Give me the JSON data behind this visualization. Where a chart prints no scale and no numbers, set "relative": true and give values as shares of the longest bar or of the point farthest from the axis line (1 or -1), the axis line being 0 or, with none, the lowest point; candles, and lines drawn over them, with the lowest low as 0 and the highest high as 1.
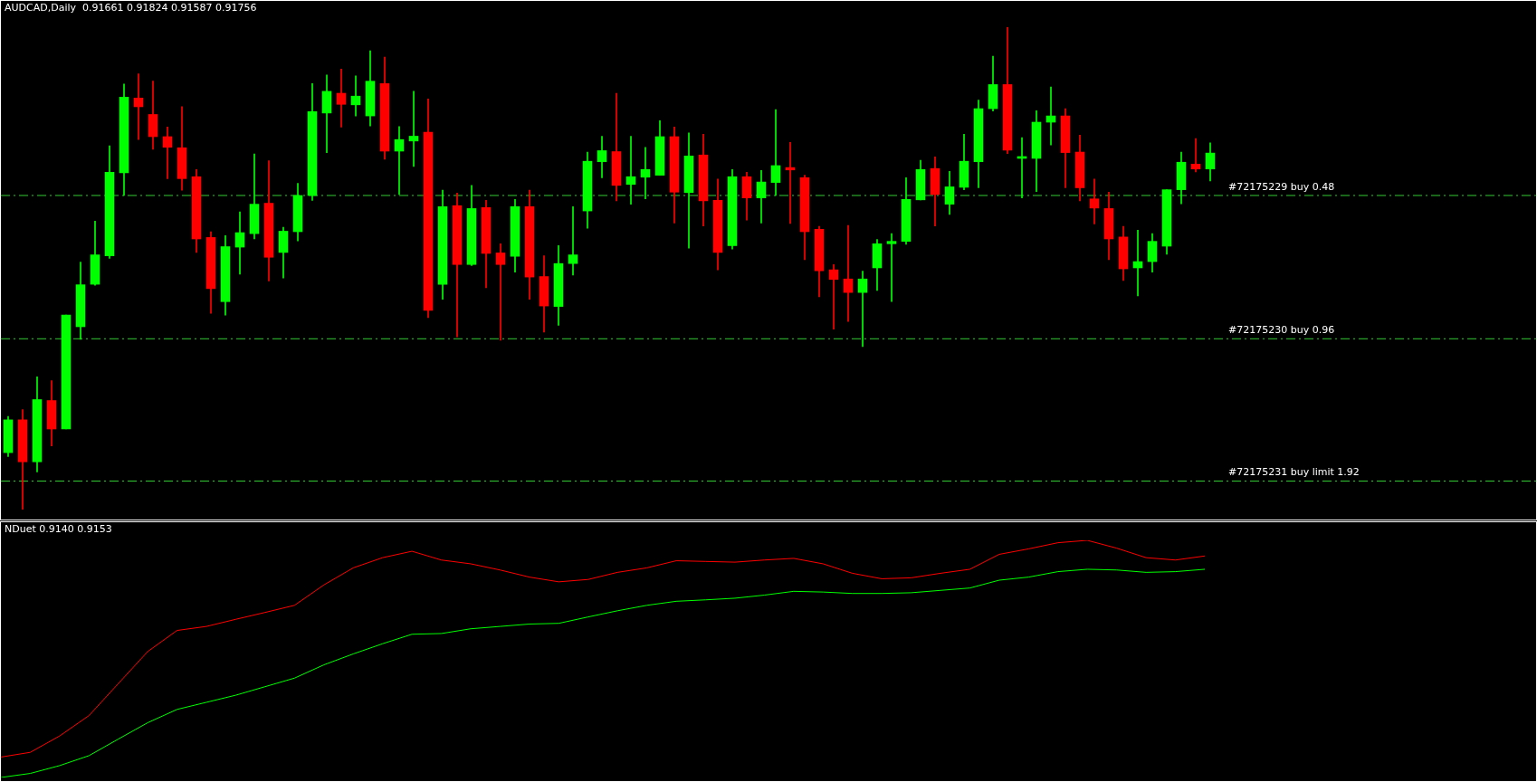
{
  "chart_data": [
    {
      "type": "candlestick",
      "title": "AUDCAD,Daily  0.91661 0.91824 0.91587 0.91756",
      "relative": true,
      "tick_labels": false,
      "categories": [
        null,
        null,
        null,
        null,
        null,
        null,
        null,
        null,
        null,
        null,
        null,
        null,
        null,
        null,
        null,
        null,
        null,
        null,
        null,
        null,
        null,
        null,
        null,
        null,
        null,
        null,
        null,
        null,
        null,
        null,
        null,
        null,
        null,
        null,
        null,
        null,
        null,
        null,
        null,
        null,
        null,
        null,
        null,
        null,
        null,
        null,
        null,
        null,
        null,
        null,
        null,
        null,
        null,
        null,
        null,
        null,
        null,
        null,
        null,
        null,
        null,
        null,
        null,
        null,
        null,
        null,
        null,
        null,
        null,
        null,
        null,
        null,
        null,
        null,
        null,
        null,
        null,
        null,
        null,
        null,
        null,
        null,
        null,
        null
      ],
      "ohlc": [
        [
          0.118,
          0.193,
          0.11,
          0.186
        ],
        [
          0.186,
          0.207,
          0,
          0.099
        ],
        [
          0.099,
          0.275,
          0.078,
          0.228
        ],
        [
          0.226,
          0.267,
          0.132,
          0.167
        ],
        [
          0.167,
          0.403,
          0.167,
          0.403
        ],
        [
          0.379,
          0.513,
          0.353,
          0.466
        ],
        [
          0.467,
          0.598,
          0.465,
          0.528
        ],
        [
          0.526,
          0.754,
          0.521,
          0.699
        ],
        [
          0.698,
          0.882,
          0.651,
          0.855
        ],
        [
          0.853,
          0.903,
          0.767,
          0.835
        ],
        [
          0.819,
          0.888,
          0.747,
          0.773
        ],
        [
          0.773,
          0.793,
          0.686,
          0.751
        ],
        [
          0.75,
          0.835,
          0.662,
          0.686
        ],
        [
          0.69,
          0.705,
          0.533,
          0.561
        ],
        [
          0.564,
          0.576,
          0.407,
          0.458
        ],
        [
          0.431,
          0.568,
          0.403,
          0.545
        ],
        [
          0.544,
          0.617,
          0.488,
          0.574
        ],
        [
          0.572,
          0.737,
          0.561,
          0.633
        ],
        [
          0.635,
          0.723,
          0.474,
          0.523
        ],
        [
          0.533,
          0.585,
          0.48,
          0.577
        ],
        [
          0.576,
          0.676,
          0.557,
          0.651
        ],
        [
          0.651,
          0.883,
          0.641,
          0.825
        ],
        [
          0.822,
          0.901,
          0.74,
          0.867
        ],
        [
          0.863,
          0.913,
          0.793,
          0.84
        ],
        [
          0.839,
          0.899,
          0.816,
          0.857
        ],
        [
          0.816,
          0.951,
          0.795,
          0.888
        ],
        [
          0.883,
          0.938,
          0.726,
          0.743
        ],
        [
          0.743,
          0.794,
          0.653,
          0.767
        ],
        [
          0.764,
          0.867,
          0.711,
          0.774
        ],
        [
          0.782,
          0.851,
          0.398,
          0.413
        ],
        [
          0.467,
          0.662,
          0.436,
          0.628
        ],
        [
          0.63,
          0.656,
          0.358,
          0.508
        ],
        [
          0.508,
          0.672,
          0.506,
          0.624
        ],
        [
          0.626,
          0.641,
          0.46,
          0.531
        ],
        [
          0.532,
          0.551,
          0.351,
          0.508
        ],
        [
          0.525,
          0.643,
          0.492,
          0.628
        ],
        [
          0.628,
          0.662,
          0.436,
          0.482
        ],
        [
          0.483,
          0.526,
          0.368,
          0.422
        ],
        [
          0.421,
          0.547,
          0.382,
          0.51
        ],
        [
          0.51,
          0.628,
          0.486,
          0.528
        ],
        [
          0.619,
          0.741,
          0.583,
          0.722
        ],
        [
          0.721,
          0.774,
          0.688,
          0.744
        ],
        [
          0.742,
          0.863,
          0.64,
          0.672
        ],
        [
          0.674,
          0.774,
          0.633,
          0.69
        ],
        [
          0.689,
          0.751,
          0.644,
          0.705
        ],
        [
          0.693,
          0.806,
          0.693,
          0.773
        ],
        [
          0.773,
          0.793,
          0.594,
          0.658
        ],
        [
          0.657,
          0.781,
          0.542,
          0.733
        ],
        [
          0.735,
          0.778,
          0.588,
          0.64
        ],
        [
          0.641,
          0.685,
          0.497,
          0.533
        ],
        [
          0.547,
          0.705,
          0.54,
          0.69
        ],
        [
          0.69,
          0.699,
          0.6,
          0.646
        ],
        [
          0.646,
          0.703,
          0.594,
          0.679
        ],
        [
          0.678,
          0.829,
          0.651,
          0.713
        ],
        [
          0.709,
          0.761,
          0.593,
          0.704
        ],
        [
          0.688,
          0.693,
          0.518,
          0.576
        ],
        [
          0.581,
          0.587,
          0.441,
          0.495
        ],
        [
          0.497,
          0.508,
          0.374,
          0.477
        ],
        [
          0.478,
          0.589,
          0.39,
          0.45
        ],
        [
          0.45,
          0.494,
          0.338,
          0.478
        ],
        [
          0.501,
          0.56,
          0.454,
          0.551
        ],
        [
          0.551,
          0.572,
          0.431,
          0.556
        ],
        [
          0.556,
          0.688,
          0.55,
          0.643
        ],
        [
          0.642,
          0.724,
          0.642,
          0.705
        ],
        [
          0.707,
          0.731,
          0.588,
          0.653
        ],
        [
          0.633,
          0.701,
          0.612,
          0.669
        ],
        [
          0.668,
          0.778,
          0.663,
          0.722
        ],
        [
          0.721,
          0.849,
          0.667,
          0.831
        ],
        [
          0.831,
          0.94,
          0.826,
          0.881
        ],
        [
          0.881,
          1,
          0.738,
          0.745
        ],
        [
          0.728,
          0.771,
          0.646,
          0.729
        ],
        [
          0.728,
          0.827,
          0.659,
          0.803
        ],
        [
          0.803,
          0.876,
          0.756,
          0.816
        ],
        [
          0.816,
          0.831,
          0.667,
          0.74
        ],
        [
          0.741,
          0.776,
          0.64,
          0.667
        ],
        [
          0.644,
          0.685,
          0.592,
          0.625
        ],
        [
          0.624,
          0.658,
          0.518,
          0.561
        ],
        [
          0.565,
          0.587,
          0.475,
          0.499
        ],
        [
          0.501,
          0.579,
          0.443,
          0.514
        ],
        [
          0.514,
          0.572,
          0.492,
          0.556
        ],
        [
          0.546,
          0.663,
          0.529,
          0.663
        ],
        [
          0.663,
          0.741,
          0.634,
          0.72
        ],
        [
          0.716,
          0.769,
          0.7,
          0.706
        ],
        [
          0.706,
          0.76,
          0.681,
          0.739
        ]
      ],
      "colors": [
        "#00ff00",
        "#ff0000",
        "#00ff00",
        "#ff0000",
        "#00ff00",
        "#00ff00",
        "#00ff00",
        "#00ff00",
        "#00ff00",
        "#ff0000",
        "#ff0000",
        "#ff0000",
        "#ff0000",
        "#ff0000",
        "#ff0000",
        "#00ff00",
        "#00ff00",
        "#00ff00",
        "#ff0000",
        "#00ff00",
        "#00ff00",
        "#00ff00",
        "#00ff00",
        "#ff0000",
        "#00ff00",
        "#00ff00",
        "#ff0000",
        "#00ff00",
        "#00ff00",
        "#ff0000",
        "#00ff00",
        "#ff0000",
        "#00ff00",
        "#ff0000",
        "#ff0000",
        "#00ff00",
        "#ff0000",
        "#ff0000",
        "#00ff00",
        "#00ff00",
        "#00ff00",
        "#00ff00",
        "#ff0000",
        "#00ff00",
        "#00ff00",
        "#00ff00",
        "#ff0000",
        "#00ff00",
        "#ff0000",
        "#ff0000",
        "#00ff00",
        "#ff0000",
        "#00ff00",
        "#00ff00",
        "#ff0000",
        "#ff0000",
        "#ff0000",
        "#ff0000",
        "#ff0000",
        "#00ff00",
        "#00ff00",
        "#00ff00",
        "#00ff00",
        "#00ff00",
        "#ff0000",
        "#00ff00",
        "#00ff00",
        "#00ff00",
        "#00ff00",
        "#ff0000",
        "#00ff00",
        "#00ff00",
        "#00ff00",
        "#ff0000",
        "#ff0000",
        "#ff0000",
        "#ff0000",
        "#ff0000",
        "#00ff00",
        "#00ff00",
        "#00ff00",
        "#00ff00",
        "#ff0000",
        "#00ff00"
      ],
      "ref_lines": [
        {
          "axis": "y",
          "value": 0.652,
          "label": "#72175229 buy 0.48",
          "color": "#32cd32",
          "line_style": "dashed"
        },
        {
          "axis": "y",
          "value": 0.355,
          "label": "#72175230 buy 0.96",
          "color": "#32cd32",
          "line_style": "dashed"
        },
        {
          "axis": "y",
          "value": 0.06,
          "label": "#72175231 buy limit 1.92",
          "color": "#32cd32",
          "line_style": "dashed"
        }
      ]
    },
    {
      "type": "line",
      "title": "NDuet 0.9140 0.9153",
      "relative": true,
      "tick_labels": false,
      "categories": [
        null,
        null,
        null,
        null,
        null,
        null,
        null,
        null,
        null,
        null,
        null,
        null,
        null,
        null,
        null,
        null,
        null,
        null,
        null,
        null,
        null,
        null,
        null,
        null,
        null,
        null,
        null,
        null,
        null,
        null,
        null,
        null,
        null,
        null,
        null,
        null,
        null,
        null,
        null,
        null,
        null,
        null
      ],
      "series": [
        {
          "color": "#ff0000",
          "values": [
            0.086,
            0.106,
            0.175,
            0.261,
            0.396,
            0.531,
            0.62,
            0.637,
            0.667,
            0.696,
            0.726,
            0.812,
            0.884,
            0.927,
            0.954,
            0.917,
            0.901,
            0.875,
            0.845,
            0.825,
            0.835,
            0.865,
            0.884,
            0.914,
            0.911,
            0.908,
            0.917,
            0.924,
            0.901,
            0.861,
            0.838,
            0.842,
            0.861,
            0.878,
            0.941,
            0.964,
            0.99,
            1,
            0.967,
            0.927,
            0.917,
            0.934
          ]
        },
        {
          "color": "#00ff00",
          "values": [
            0,
            0.017,
            0.05,
            0.092,
            0.162,
            0.231,
            0.287,
            0.317,
            0.347,
            0.383,
            0.419,
            0.475,
            0.521,
            0.564,
            0.604,
            0.607,
            0.627,
            0.637,
            0.647,
            0.65,
            0.677,
            0.703,
            0.726,
            0.743,
            0.749,
            0.756,
            0.769,
            0.785,
            0.782,
            0.776,
            0.776,
            0.779,
            0.789,
            0.799,
            0.832,
            0.845,
            0.868,
            0.878,
            0.875,
            0.865,
            0.868,
            0.878
          ]
        }
      ]
    }
  ]
}
